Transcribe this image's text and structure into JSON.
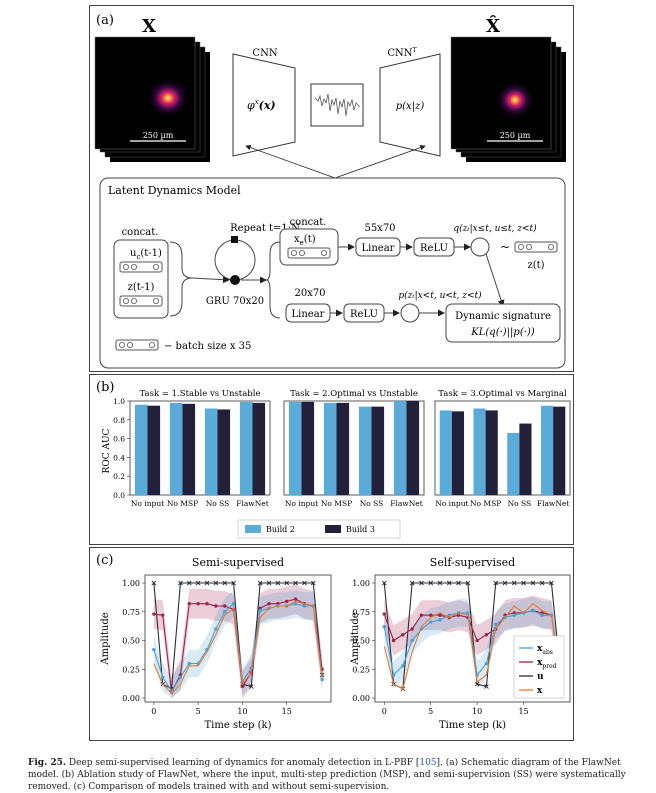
{
  "panel_a": {
    "label": "(a)",
    "input_symbol": "X",
    "output_symbol": "X̂",
    "encoder_label": "CNN",
    "decoder_label": "CNN",
    "decoder_sup": "T",
    "encoder_func": "φ",
    "encoder_func_sup": "x",
    "encoder_func_arg": "(x)",
    "decoder_func": "p(x|z)",
    "scale_bar": "250 µm",
    "ldm_title": "Latent Dynamics Model",
    "concat_label": "concat.",
    "input_u": "u",
    "input_u_sub": "c",
    "input_u_arg": "(t-1)",
    "input_z": "z(t-1)",
    "repeat_label": "Repeat t=1:N",
    "gru_label": "GRU 70x20",
    "concat2_label": "concat.",
    "xe_label": "x",
    "xe_sub": "e",
    "xe_arg": "(t)",
    "linear1_dim": "55x70",
    "linear_label": "Linear",
    "relu_label": "ReLU",
    "q_expr": "q(zₜ|x≤t, u≤t, z<t)",
    "tilde": "~",
    "z_t": "z(t)",
    "linear2_dim": "20x70",
    "p_expr": "p(zₜ|x<t, u<t, z<t)",
    "dyn_sig": "Dynamic signature",
    "kl_expr": "KL(q(·)||p(·))",
    "batch_label": "− batch size x 35"
  },
  "panel_b": {
    "label": "(b)",
    "ylabel": "ROC AUC"
  },
  "panel_c": {
    "label": "(c)",
    "ylabel": "Amplitude",
    "xlabel": "Time step (k)",
    "legend": [
      "x",
      "x",
      "u",
      "x"
    ],
    "legend_sub": [
      "abs",
      "pred",
      "",
      ""
    ],
    "legend_hat": [
      true,
      true,
      false,
      false
    ]
  },
  "caption": {
    "fig": "Fig. 25.",
    "text_before": " Deep semi-supervised learning of dynamics for anomaly detection in L-PBF [",
    "ref": "105",
    "text_after": "]. (a) Schematic diagram of the FlawNet model. (b) Ablation study of FlawNet, where the input, multi-step prediction (MSP), and semi-supervision (SS) were systematically removed. (c) Comparison of models trained with and without semi-supervision."
  },
  "colors": {
    "build2": "#5aabd8",
    "build3": "#23203a",
    "pred": "#a3224a",
    "u": "#2b2b3a",
    "x": "#e9782a",
    "abs": "#4b9fd4"
  },
  "chart_data": [
    {
      "type": "bar",
      "title": "Task = 1.Stable vs Unstable",
      "categories": [
        "No input",
        "No MSP",
        "No SS",
        "FlawNet"
      ],
      "series": [
        {
          "name": "Build 2",
          "values": [
            0.96,
            0.98,
            0.92,
            0.99
          ]
        },
        {
          "name": "Build 3",
          "values": [
            0.95,
            0.97,
            0.91,
            0.98
          ]
        }
      ],
      "ylabel": "ROC AUC",
      "ylim": [
        0.0,
        1.0
      ],
      "yticks": [
        "0.0",
        "0.2",
        "0.4",
        "0.6",
        "0.8",
        "1.0"
      ]
    },
    {
      "type": "bar",
      "title": "Task = 2.Optimal vs Unstable",
      "categories": [
        "No input",
        "No MSP",
        "No SS",
        "FlawNet"
      ],
      "series": [
        {
          "name": "Build 2",
          "values": [
            0.99,
            0.98,
            0.94,
            1.0
          ]
        },
        {
          "name": "Build 3",
          "values": [
            0.99,
            0.98,
            0.94,
            1.0
          ]
        }
      ],
      "ylim": [
        0.0,
        1.0
      ]
    },
    {
      "type": "bar",
      "title": "Task = 3.Optimal vs Marginal",
      "categories": [
        "No input",
        "No MSP",
        "No SS",
        "FlawNet"
      ],
      "series": [
        {
          "name": "Build 2",
          "values": [
            0.9,
            0.92,
            0.66,
            0.95
          ]
        },
        {
          "name": "Build 3",
          "values": [
            0.89,
            0.9,
            0.76,
            0.94
          ]
        }
      ],
      "ylim": [
        0.0,
        1.0
      ],
      "legend": [
        "Build 2",
        "Build 3"
      ]
    },
    {
      "type": "line",
      "title": "Semi-supervised",
      "x": [
        0,
        1,
        2,
        3,
        4,
        5,
        6,
        7,
        8,
        9,
        10,
        11,
        12,
        13,
        14,
        15,
        16,
        17,
        18,
        19
      ],
      "series": [
        {
          "name": "u",
          "values": [
            1.0,
            0.12,
            0.08,
            1.0,
            1.0,
            1.0,
            1.0,
            1.0,
            1.0,
            1.0,
            0.12,
            0.1,
            1.0,
            1.0,
            1.0,
            1.0,
            1.0,
            1.0,
            1.0,
            0.2
          ]
        },
        {
          "name": "x_pred",
          "values": [
            0.73,
            0.72,
            0.05,
            0.2,
            0.82,
            0.82,
            0.82,
            0.8,
            0.8,
            0.77,
            0.1,
            0.22,
            0.78,
            0.82,
            0.82,
            0.84,
            0.86,
            0.82,
            0.8,
            0.25
          ]
        },
        {
          "name": "x_abs",
          "values": [
            0.42,
            0.18,
            0.06,
            0.18,
            0.3,
            0.3,
            0.42,
            0.6,
            0.75,
            0.82,
            0.14,
            0.26,
            0.76,
            0.78,
            0.8,
            0.8,
            0.82,
            0.8,
            0.8,
            0.16
          ]
        },
        {
          "name": "x",
          "values": [
            0.3,
            0.12,
            0.04,
            0.12,
            0.28,
            0.28,
            0.4,
            0.55,
            0.72,
            0.78,
            0.12,
            0.22,
            0.7,
            0.78,
            0.8,
            0.8,
            0.84,
            0.82,
            0.8,
            0.18
          ]
        }
      ],
      "xlabel": "Time step (k)",
      "ylabel": "Amplitude",
      "ylim": [
        0.0,
        1.0
      ],
      "yticks": [
        "0.00",
        "0.25",
        "0.50",
        "0.75",
        "1.00"
      ],
      "xticks": [
        "0",
        "5",
        "10",
        "15"
      ]
    },
    {
      "type": "line",
      "title": "Self-supervised",
      "x": [
        0,
        1,
        2,
        3,
        4,
        5,
        6,
        7,
        8,
        9,
        10,
        11,
        12,
        13,
        14,
        15,
        16,
        17,
        18,
        19
      ],
      "series": [
        {
          "name": "u",
          "values": [
            1.0,
            0.12,
            0.08,
            1.0,
            1.0,
            1.0,
            1.0,
            1.0,
            1.0,
            1.0,
            0.12,
            0.1,
            1.0,
            1.0,
            1.0,
            1.0,
            1.0,
            1.0,
            1.0,
            0.2
          ]
        },
        {
          "name": "x_pred",
          "values": [
            0.73,
            0.5,
            0.55,
            0.6,
            0.72,
            0.72,
            0.72,
            0.7,
            0.72,
            0.7,
            0.5,
            0.55,
            0.6,
            0.72,
            0.74,
            0.74,
            0.76,
            0.74,
            0.72,
            0.2
          ]
        },
        {
          "name": "x_abs",
          "values": [
            0.62,
            0.2,
            0.28,
            0.5,
            0.6,
            0.66,
            0.68,
            0.72,
            0.74,
            0.74,
            0.2,
            0.3,
            0.64,
            0.7,
            0.72,
            0.74,
            0.76,
            0.72,
            0.72,
            0.2
          ]
        },
        {
          "name": "x",
          "values": [
            0.45,
            0.12,
            0.08,
            0.4,
            0.62,
            0.7,
            0.74,
            0.7,
            0.74,
            0.72,
            0.14,
            0.2,
            0.6,
            0.7,
            0.8,
            0.74,
            0.82,
            0.76,
            0.72,
            0.18
          ]
        }
      ],
      "xlabel": "Time step (k)",
      "ylim": [
        0.0,
        1.0
      ],
      "yticks": [
        "0.00",
        "0.25",
        "0.50",
        "0.75",
        "1.00"
      ],
      "xticks": [
        "0",
        "5",
        "10",
        "15"
      ]
    }
  ]
}
